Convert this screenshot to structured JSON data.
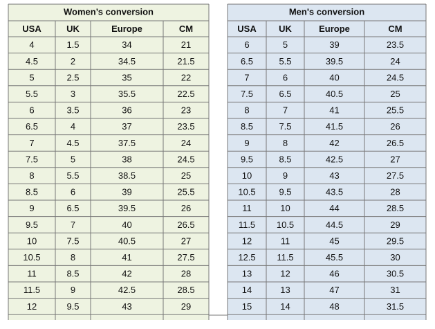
{
  "women": {
    "title": "Women’s conversion",
    "columns": [
      "USA",
      "UK",
      "Europe",
      "CM"
    ],
    "rows": [
      [
        "4",
        "1.5",
        "34",
        "21"
      ],
      [
        "4.5",
        "2",
        "34.5",
        "21.5"
      ],
      [
        "5",
        "2.5",
        "35",
        "22"
      ],
      [
        "5.5",
        "3",
        "35.5",
        "22.5"
      ],
      [
        "6",
        "3.5",
        "36",
        "23"
      ],
      [
        "6.5",
        "4",
        "37",
        "23.5"
      ],
      [
        "7",
        "4.5",
        "37.5",
        "24"
      ],
      [
        "7.5",
        "5",
        "38",
        "24.5"
      ],
      [
        "8",
        "5.5",
        "38.5",
        "25"
      ],
      [
        "8.5",
        "6",
        "39",
        "25.5"
      ],
      [
        "9",
        "6.5",
        "39.5",
        "26"
      ],
      [
        "9.5",
        "7",
        "40",
        "26.5"
      ],
      [
        "10",
        "7.5",
        "40.5",
        "27"
      ],
      [
        "10.5",
        "8",
        "41",
        "27.5"
      ],
      [
        "11",
        "8.5",
        "42",
        "28"
      ],
      [
        "11.5",
        "9",
        "42.5",
        "28.5"
      ],
      [
        "12",
        "9.5",
        "43",
        "29"
      ]
    ]
  },
  "men": {
    "title": "Men's conversion",
    "columns": [
      "USA",
      "UK",
      "Europe",
      "CM"
    ],
    "rows": [
      [
        "6",
        "5",
        "39",
        "23.5"
      ],
      [
        "6.5",
        "5.5",
        "39.5",
        "24"
      ],
      [
        "7",
        "6",
        "40",
        "24.5"
      ],
      [
        "7.5",
        "6.5",
        "40.5",
        "25"
      ],
      [
        "8",
        "7",
        "41",
        "25.5"
      ],
      [
        "8.5",
        "7.5",
        "41.5",
        "26"
      ],
      [
        "9",
        "8",
        "42",
        "26.5"
      ],
      [
        "9.5",
        "8.5",
        "42.5",
        "27"
      ],
      [
        "10",
        "9",
        "43",
        "27.5"
      ],
      [
        "10.5",
        "9.5",
        "43.5",
        "28"
      ],
      [
        "11",
        "10",
        "44",
        "28.5"
      ],
      [
        "11.5",
        "10.5",
        "44.5",
        "29"
      ],
      [
        "12",
        "11",
        "45",
        "29.5"
      ],
      [
        "12.5",
        "11.5",
        "45.5",
        "30"
      ],
      [
        "13",
        "12",
        "46",
        "30.5"
      ],
      [
        "14",
        "13",
        "47",
        "31"
      ],
      [
        "15",
        "14",
        "48",
        "31.5"
      ]
    ]
  }
}
